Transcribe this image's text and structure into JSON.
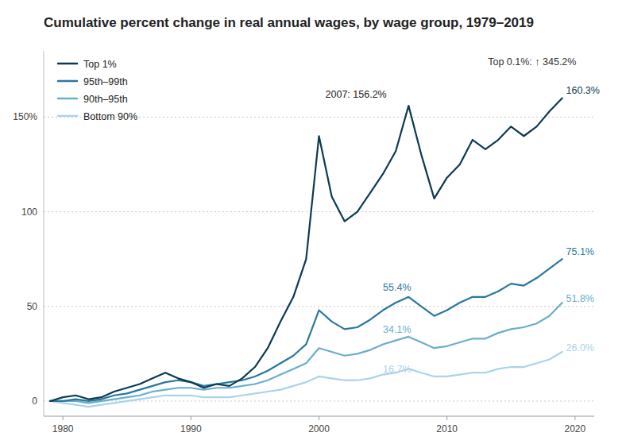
{
  "chart_data": {
    "type": "line",
    "title": "Cumulative percent change in real annual wages, by wage group, 1979–2019",
    "x": [
      1979,
      1980,
      1981,
      1982,
      1983,
      1984,
      1985,
      1986,
      1987,
      1988,
      1989,
      1990,
      1991,
      1992,
      1993,
      1994,
      1995,
      1996,
      1997,
      1998,
      1999,
      2000,
      2001,
      2002,
      2003,
      2004,
      2005,
      2006,
      2007,
      2008,
      2009,
      2010,
      2011,
      2012,
      2013,
      2014,
      2015,
      2016,
      2017,
      2018,
      2019
    ],
    "series": [
      {
        "name": "Bottom 90%",
        "color": "#aad4e8",
        "values": [
          0,
          -1,
          -2,
          -3,
          -2,
          -1,
          0,
          1,
          2,
          3,
          3,
          3,
          2,
          2,
          2,
          3,
          4,
          5,
          6,
          8,
          10,
          13,
          12,
          11,
          11,
          12,
          14,
          15,
          17,
          15,
          13,
          13,
          14,
          15,
          15,
          17,
          18,
          18,
          20,
          22,
          26
        ]
      },
      {
        "name": "90th–95th",
        "color": "#6aaecc",
        "values": [
          0,
          0,
          0,
          -1,
          0,
          1,
          2,
          3,
          5,
          6,
          7,
          7,
          6,
          7,
          7,
          8,
          9,
          11,
          14,
          17,
          20,
          28,
          26,
          24,
          25,
          27,
          30,
          32,
          34,
          31,
          28,
          29,
          31,
          33,
          33,
          36,
          38,
          39,
          41,
          45,
          52
        ]
      },
      {
        "name": "95th–99th",
        "color": "#2878a0",
        "values": [
          0,
          0,
          1,
          0,
          1,
          3,
          4,
          6,
          8,
          10,
          11,
          10,
          8,
          9,
          10,
          11,
          13,
          16,
          20,
          24,
          30,
          48,
          42,
          38,
          39,
          43,
          48,
          52,
          55,
          50,
          45,
          48,
          52,
          55,
          55,
          58,
          62,
          61,
          65,
          70,
          75
        ]
      },
      {
        "name": "Top 1%",
        "color": "#0d3a52",
        "values": [
          0,
          2,
          3,
          1,
          2,
          5,
          7,
          9,
          12,
          15,
          12,
          10,
          7,
          9,
          8,
          12,
          18,
          28,
          42,
          55,
          75,
          140,
          108,
          95,
          100,
          110,
          120,
          132,
          156,
          130,
          107,
          118,
          125,
          138,
          133,
          138,
          145,
          140,
          145,
          153,
          160
        ]
      }
    ],
    "xlim": [
      1978.5,
      2021.5
    ],
    "ylim": [
      -8,
      185
    ],
    "xticks": [
      1980,
      1990,
      2000,
      2010,
      2020
    ],
    "yticks": [
      0,
      50,
      100,
      {
        "value": 150,
        "label": "150%"
      }
    ],
    "grid": true,
    "legend": "upper left",
    "annotations": [
      {
        "text": "2007: 156.2%",
        "x": 2000.5,
        "y": 159,
        "color": "#1a1a1a"
      },
      {
        "text": "Top 0.1%: ↑ 345.2%",
        "x": 2013.2,
        "y": 176,
        "color": "#333333"
      },
      {
        "text": "160.3%",
        "x": 2019.3,
        "y": 161,
        "color": "#0d3a52"
      },
      {
        "text": "75.1%",
        "x": 2019.3,
        "y": 76,
        "color": "#2878a0"
      },
      {
        "text": "51.8%",
        "x": 2019.3,
        "y": 51,
        "color": "#6aaecc"
      },
      {
        "text": "26.0%",
        "x": 2019.3,
        "y": 25,
        "color": "#aad4e8"
      },
      {
        "text": "55.4%",
        "x": 2005.0,
        "y": 57,
        "color": "#2878a0"
      },
      {
        "text": "34.1%",
        "x": 2005.0,
        "y": 35,
        "color": "#6aaecc"
      },
      {
        "text": "16.7%",
        "x": 2005.0,
        "y": 14,
        "color": "#aad4e8"
      }
    ]
  }
}
